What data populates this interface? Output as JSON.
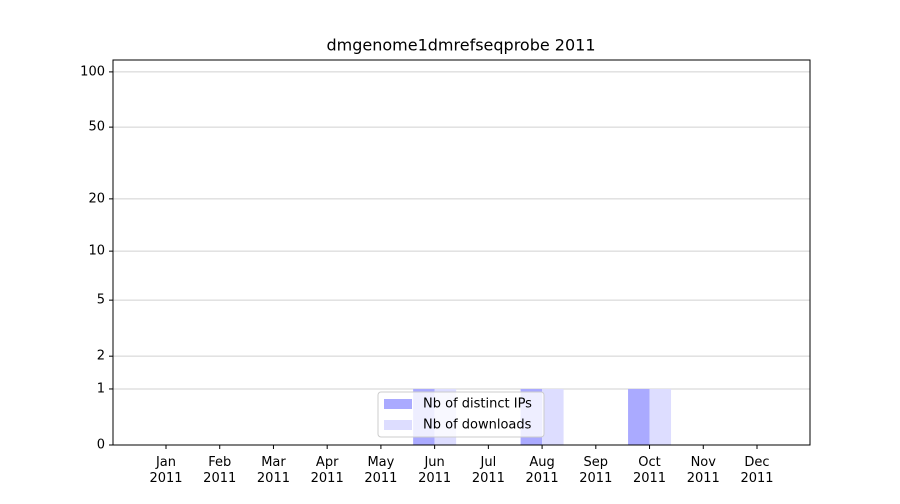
{
  "chart_data": {
    "type": "bar",
    "title": "dmgenome1dmrefseqprobe 2011",
    "categories": [
      "Jan 2011",
      "Feb 2011",
      "Mar 2011",
      "Apr 2011",
      "May 2011",
      "Jun 2011",
      "Jul 2011",
      "Aug 2011",
      "Sep 2011",
      "Oct 2011",
      "Nov 2011",
      "Dec 2011"
    ],
    "series": [
      {
        "name": "Nb of distinct IPs",
        "color": "#aaaaff",
        "values": [
          0,
          0,
          0,
          0,
          0,
          1,
          0,
          1,
          0,
          1,
          0,
          0
        ]
      },
      {
        "name": "Nb of downloads",
        "color": "#ddddff",
        "values": [
          0,
          0,
          0,
          0,
          0,
          1,
          0,
          1,
          0,
          1,
          0,
          0
        ]
      }
    ],
    "yscale": "log1p",
    "ylim": [
      0,
      116
    ],
    "yticks": [
      0,
      1,
      2,
      5,
      10,
      20,
      50,
      100
    ],
    "grid": true,
    "legend": "lower center"
  }
}
